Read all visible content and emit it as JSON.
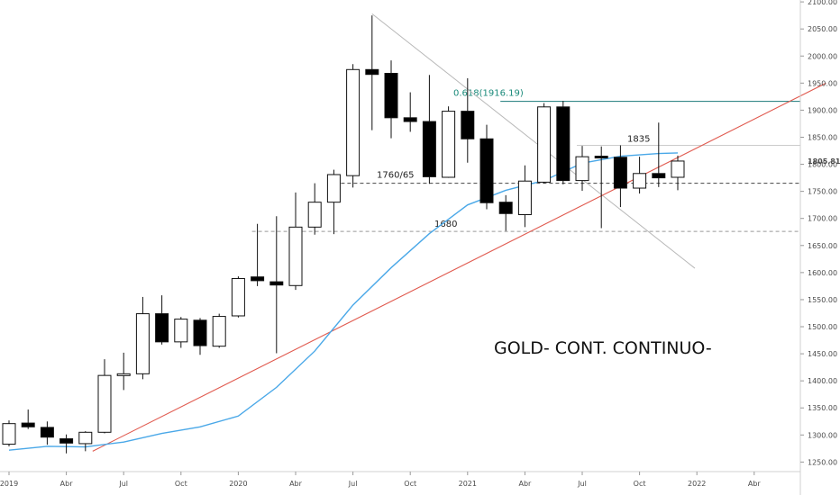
{
  "chart_data": {
    "type": "candlestick",
    "title": "GOLD- CONT. CONTINUO-",
    "ylim": [
      1238,
      2110
    ],
    "y_ticks": [
      1250,
      1300,
      1350,
      1400,
      1450,
      1500,
      1550,
      1600,
      1650,
      1700,
      1750,
      1800,
      1850,
      1900,
      1950,
      2000,
      2050,
      2100
    ],
    "y_tick_labels": [
      "1250.00",
      "1300.00",
      "1350.00",
      "1400.00",
      "1450.00",
      "1500.00",
      "1550.00",
      "1600.00",
      "1650.00",
      "1700.00",
      "1750.00",
      "1800.00",
      "1850.00",
      "1900.00",
      "1950.00",
      "2000.00",
      "2050.00",
      "2100.00"
    ],
    "price_label": "1805.81",
    "x_ticks": [
      {
        "month": "2019-01",
        "label": "2019"
      },
      {
        "month": "2019-04",
        "label": "Abr"
      },
      {
        "month": "2019-07",
        "label": "Jul"
      },
      {
        "month": "2019-10",
        "label": "Oct"
      },
      {
        "month": "2020-01",
        "label": "2020"
      },
      {
        "month": "2020-04",
        "label": "Abr"
      },
      {
        "month": "2020-07",
        "label": "Jul"
      },
      {
        "month": "2020-10",
        "label": "Oct"
      },
      {
        "month": "2021-01",
        "label": "2021"
      },
      {
        "month": "2021-04",
        "label": "Abr"
      },
      {
        "month": "2021-07",
        "label": "Jul"
      },
      {
        "month": "2021-10",
        "label": "Oct"
      },
      {
        "month": "2022-01",
        "label": "2022"
      },
      {
        "month": "2022-04",
        "label": "Abr"
      }
    ],
    "candles": [
      {
        "month": "2019-01",
        "open": 1283,
        "high": 1327,
        "low": 1279,
        "close": 1321
      },
      {
        "month": "2019-02",
        "open": 1322,
        "high": 1347,
        "low": 1311,
        "close": 1315
      },
      {
        "month": "2019-03",
        "open": 1314,
        "high": 1325,
        "low": 1282,
        "close": 1296
      },
      {
        "month": "2019-04",
        "open": 1293,
        "high": 1301,
        "low": 1266,
        "close": 1285
      },
      {
        "month": "2019-05",
        "open": 1284,
        "high": 1307,
        "low": 1270,
        "close": 1305
      },
      {
        "month": "2019-06",
        "open": 1305,
        "high": 1440,
        "low": 1303,
        "close": 1410
      },
      {
        "month": "2019-07",
        "open": 1410,
        "high": 1452,
        "low": 1383,
        "close": 1413
      },
      {
        "month": "2019-08",
        "open": 1413,
        "high": 1555,
        "low": 1403,
        "close": 1524
      },
      {
        "month": "2019-09",
        "open": 1524,
        "high": 1558,
        "low": 1467,
        "close": 1472
      },
      {
        "month": "2019-10",
        "open": 1472,
        "high": 1518,
        "low": 1461,
        "close": 1514
      },
      {
        "month": "2019-11",
        "open": 1512,
        "high": 1516,
        "low": 1448,
        "close": 1465
      },
      {
        "month": "2019-12",
        "open": 1464,
        "high": 1524,
        "low": 1461,
        "close": 1519
      },
      {
        "month": "2020-01",
        "open": 1520,
        "high": 1593,
        "low": 1517,
        "close": 1589
      },
      {
        "month": "2020-02",
        "open": 1592,
        "high": 1690,
        "low": 1575,
        "close": 1585
      },
      {
        "month": "2020-03",
        "open": 1583,
        "high": 1704,
        "low": 1451,
        "close": 1577
      },
      {
        "month": "2020-04",
        "open": 1576,
        "high": 1748,
        "low": 1568,
        "close": 1684
      },
      {
        "month": "2020-05",
        "open": 1684,
        "high": 1765,
        "low": 1670,
        "close": 1730
      },
      {
        "month": "2020-06",
        "open": 1730,
        "high": 1790,
        "low": 1671,
        "close": 1781
      },
      {
        "month": "2020-07",
        "open": 1779,
        "high": 1985,
        "low": 1757,
        "close": 1975
      },
      {
        "month": "2020-08",
        "open": 1975,
        "high": 2075,
        "low": 1863,
        "close": 1966
      },
      {
        "month": "2020-09",
        "open": 1968,
        "high": 1992,
        "low": 1848,
        "close": 1886
      },
      {
        "month": "2020-10",
        "open": 1886,
        "high": 1933,
        "low": 1860,
        "close": 1879
      },
      {
        "month": "2020-11",
        "open": 1879,
        "high": 1965,
        "low": 1764,
        "close": 1777
      },
      {
        "month": "2020-12",
        "open": 1776,
        "high": 1907,
        "low": 1775,
        "close": 1898
      },
      {
        "month": "2021-01",
        "open": 1898,
        "high": 1959,
        "low": 1803,
        "close": 1847
      },
      {
        "month": "2021-02",
        "open": 1847,
        "high": 1873,
        "low": 1717,
        "close": 1729
      },
      {
        "month": "2021-03",
        "open": 1730,
        "high": 1743,
        "low": 1677,
        "close": 1709
      },
      {
        "month": "2021-04",
        "open": 1707,
        "high": 1798,
        "low": 1684,
        "close": 1769
      },
      {
        "month": "2021-05",
        "open": 1767,
        "high": 1913,
        "low": 1765,
        "close": 1906
      },
      {
        "month": "2021-06",
        "open": 1906,
        "high": 1917,
        "low": 1763,
        "close": 1770
      },
      {
        "month": "2021-07",
        "open": 1770,
        "high": 1834,
        "low": 1751,
        "close": 1814
      },
      {
        "month": "2021-08",
        "open": 1815,
        "high": 1833,
        "low": 1682,
        "close": 1813
      },
      {
        "month": "2021-09",
        "open": 1813,
        "high": 1835,
        "low": 1721,
        "close": 1756
      },
      {
        "month": "2021-10",
        "open": 1756,
        "high": 1814,
        "low": 1746,
        "close": 1783
      },
      {
        "month": "2021-11",
        "open": 1783,
        "high": 1877,
        "low": 1758,
        "close": 1775
      },
      {
        "month": "2021-12",
        "open": 1776,
        "high": 1816,
        "low": 1752,
        "close": 1806
      }
    ],
    "moving_average": {
      "color": "#4aa8e8",
      "points": [
        {
          "month": "2019-01",
          "value": 1272
        },
        {
          "month": "2019-03",
          "value": 1279
        },
        {
          "month": "2019-05",
          "value": 1278
        },
        {
          "month": "2019-07",
          "value": 1287
        },
        {
          "month": "2019-09",
          "value": 1303
        },
        {
          "month": "2019-11",
          "value": 1315
        },
        {
          "month": "2020-01",
          "value": 1335
        },
        {
          "month": "2020-03",
          "value": 1388
        },
        {
          "month": "2020-05",
          "value": 1455
        },
        {
          "month": "2020-07",
          "value": 1540
        },
        {
          "month": "2020-09",
          "value": 1609
        },
        {
          "month": "2020-11",
          "value": 1672
        },
        {
          "month": "2021-01",
          "value": 1725
        },
        {
          "month": "2021-03",
          "value": 1752
        },
        {
          "month": "2021-05",
          "value": 1770
        },
        {
          "month": "2021-07",
          "value": 1802
        },
        {
          "month": "2021-09",
          "value": 1815
        },
        {
          "month": "2021-11",
          "value": 1820
        },
        {
          "month": "2021-12",
          "value": 1821
        }
      ]
    },
    "trendline": {
      "color": "#e05a4f",
      "from": {
        "month": "2019-05",
        "value": 1270
      },
      "to": {
        "month": "2022-07",
        "value": 1950
      }
    },
    "downtrend_line": {
      "color": "#b8b8b8",
      "from": {
        "month": "2020-08",
        "value": 2078
      },
      "to": {
        "month": "2021-12",
        "value": 1598
      }
    },
    "levels": [
      {
        "value": 1916.19,
        "label": "0.618(1916.19)",
        "color": "#1a7a7a",
        "style": "solid",
        "from_month": "2021-03"
      },
      {
        "value": 1835,
        "label": "1835",
        "color": "#cccccc",
        "style": "solid",
        "from_month": "2021-07"
      },
      {
        "value": 1765,
        "label": "1760/65",
        "color": "#444444",
        "style": "dashed",
        "from_month": "2020-06"
      },
      {
        "value": 1676,
        "label": "1680",
        "color": "#999999",
        "style": "dashed",
        "from_month": "2020-02"
      }
    ]
  }
}
